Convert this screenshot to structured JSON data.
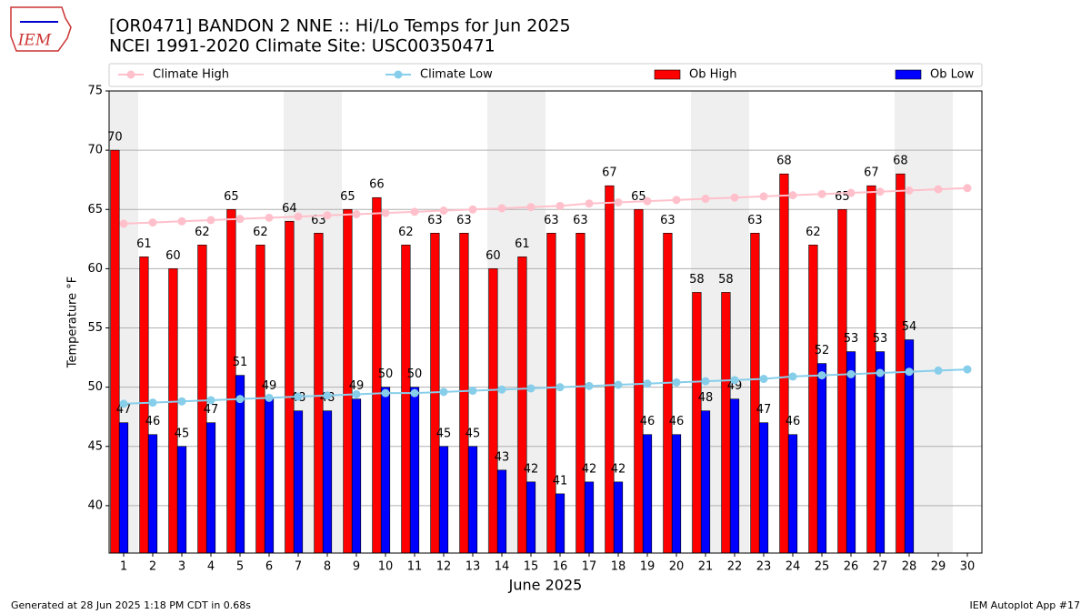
{
  "chart_data": {
    "type": "bar",
    "title": "[OR0471] BANDON 2 NNE :: Hi/Lo Temps for Jun 2025",
    "subtitle": "NCEI 1991-2020 Climate Site: USC00350471",
    "logo_text": "IEM",
    "ylabel": "Temperature °F",
    "xlabel": "June 2025",
    "footer_left": "Generated at 28 Jun 2025 1:18 PM CDT in 0.68s",
    "footer_right": "IEM Autoplot App #17",
    "x": [
      1,
      2,
      3,
      4,
      5,
      6,
      7,
      8,
      9,
      10,
      11,
      12,
      13,
      14,
      15,
      16,
      17,
      18,
      19,
      20,
      21,
      22,
      23,
      24,
      25,
      26,
      27,
      28,
      29,
      30
    ],
    "xlim": [
      0.5,
      30.5
    ],
    "xticks": [
      1,
      2,
      3,
      4,
      5,
      6,
      7,
      8,
      9,
      10,
      11,
      12,
      13,
      14,
      15,
      16,
      17,
      18,
      19,
      20,
      21,
      22,
      23,
      24,
      25,
      26,
      27,
      28,
      29,
      30
    ],
    "ylim": [
      36,
      75
    ],
    "yticks": [
      40,
      45,
      50,
      55,
      60,
      65,
      70,
      75
    ],
    "grid": true,
    "shaded_days": [
      1,
      7,
      8,
      14,
      15,
      21,
      22,
      28,
      29
    ],
    "series": [
      {
        "name": "Climate High",
        "type": "line",
        "color": "#ffc0cb",
        "values": [
          63.8,
          63.9,
          64.0,
          64.1,
          64.2,
          64.3,
          64.4,
          64.5,
          64.6,
          64.7,
          64.8,
          64.9,
          65.0,
          65.1,
          65.2,
          65.3,
          65.5,
          65.6,
          65.7,
          65.8,
          65.9,
          66.0,
          66.1,
          66.2,
          66.3,
          66.4,
          66.5,
          66.6,
          66.7,
          66.8
        ]
      },
      {
        "name": "Climate Low",
        "type": "line",
        "color": "#87ceeb",
        "values": [
          48.6,
          48.7,
          48.8,
          48.9,
          49.0,
          49.1,
          49.2,
          49.3,
          49.4,
          49.5,
          49.5,
          49.6,
          49.7,
          49.8,
          49.9,
          50.0,
          50.1,
          50.2,
          50.3,
          50.4,
          50.5,
          50.6,
          50.7,
          50.9,
          51.0,
          51.1,
          51.2,
          51.3,
          51.4,
          51.5
        ]
      },
      {
        "name": "Ob High",
        "type": "bar",
        "color": "#ff0000",
        "values": [
          70,
          61,
          60,
          62,
          65,
          62,
          64,
          63,
          65,
          66,
          62,
          63,
          63,
          60,
          61,
          63,
          63,
          67,
          65,
          63,
          58,
          58,
          63,
          68,
          62,
          65,
          67,
          68,
          null,
          null
        ]
      },
      {
        "name": "Ob Low",
        "type": "bar",
        "color": "#0000ff",
        "values": [
          47,
          46,
          45,
          47,
          51,
          49,
          48,
          48,
          49,
          50,
          50,
          45,
          45,
          43,
          42,
          41,
          42,
          42,
          46,
          46,
          48,
          49,
          47,
          46,
          52,
          53,
          53,
          54,
          null,
          null
        ]
      }
    ]
  }
}
